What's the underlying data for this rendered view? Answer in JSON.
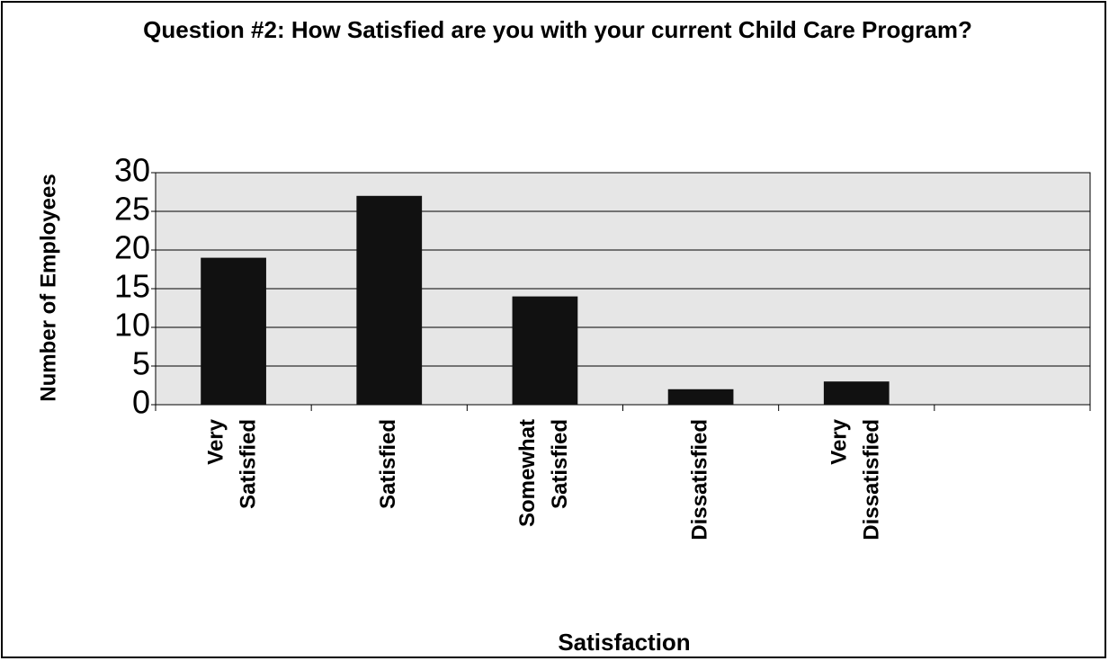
{
  "chart_data": {
    "type": "bar",
    "title": "Question #2:  How Satisfied are you with your current Child Care Program?",
    "x_label": "Satisfaction",
    "y_label": "Number of Employees",
    "categories": [
      "Very Satisfied",
      "Satisfied",
      "Somewhat Satisfied",
      "Dissatisfied",
      "Very Dissatisfied",
      null
    ],
    "values": [
      19,
      27,
      14,
      2,
      3,
      null
    ],
    "color": "#111111",
    "ylim": [
      0,
      30
    ],
    "yticks": [
      0,
      5,
      10,
      15,
      20,
      25,
      30
    ],
    "grid": true
  }
}
